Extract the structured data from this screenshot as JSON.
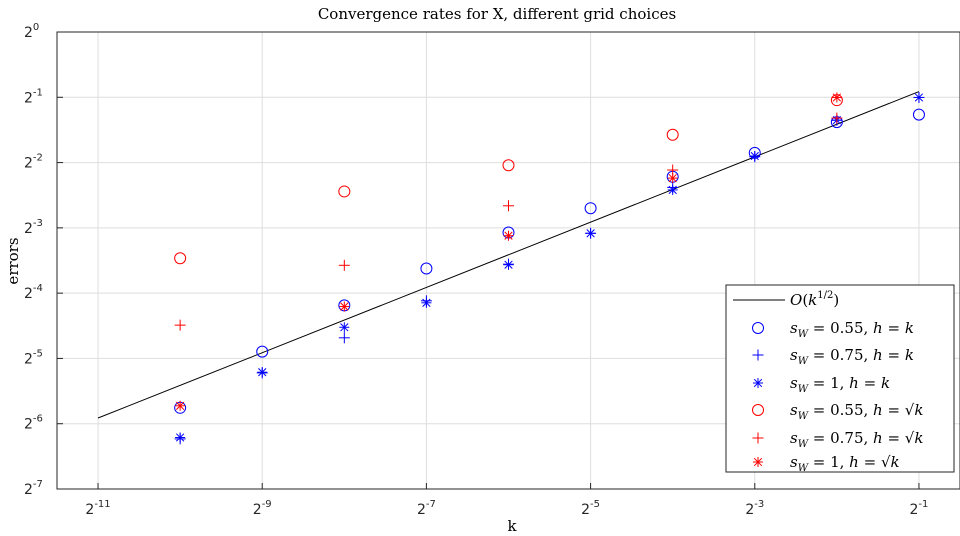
{
  "chart_data": {
    "type": "scatter",
    "title": "Convergence rates for X, different grid choices",
    "xlabel": "k",
    "ylabel": "errors",
    "x_scale": "log2",
    "y_scale": "log2",
    "xlim_exp": [
      -11.5,
      -0.5
    ],
    "ylim_exp": [
      -7,
      0
    ],
    "x_ticks": [
      {
        "base": "2",
        "exp": "-11",
        "e": -11
      },
      {
        "base": "2",
        "exp": "-9",
        "e": -9
      },
      {
        "base": "2",
        "exp": "-7",
        "e": -7
      },
      {
        "base": "2",
        "exp": "-5",
        "e": -5
      },
      {
        "base": "2",
        "exp": "-3",
        "e": -3
      },
      {
        "base": "2",
        "exp": "-1",
        "e": -1
      }
    ],
    "y_ticks": [
      {
        "base": "2",
        "exp": "0",
        "e": 0
      },
      {
        "base": "2",
        "exp": "-1",
        "e": -1
      },
      {
        "base": "2",
        "exp": "-2",
        "e": -2
      },
      {
        "base": "2",
        "exp": "-3",
        "e": -3
      },
      {
        "base": "2",
        "exp": "-4",
        "e": -4
      },
      {
        "base": "2",
        "exp": "-5",
        "e": -5
      },
      {
        "base": "2",
        "exp": "-6",
        "e": -6
      },
      {
        "base": "2",
        "exp": "-7",
        "e": -7
      }
    ],
    "grid": true,
    "legend_position": "bottom-right",
    "reference_line": {
      "name": "O(k^{1/2})",
      "color": "#000000",
      "x": [
        0.00048828,
        0.5
      ],
      "y": [
        0.0166,
        0.5312
      ]
    },
    "series": [
      {
        "name": "s_W = 0.55, h = k",
        "marker": "circle",
        "color": "#0000ff",
        "x": [
          0.0009766,
          0.0019531,
          0.0039063,
          0.0078125,
          0.015625,
          0.03125,
          0.0625,
          0.125,
          0.25,
          0.5
        ],
        "y": [
          0.0185,
          0.0336,
          0.0549,
          0.0812,
          0.119,
          0.154,
          0.215,
          0.277,
          0.384,
          0.416
        ]
      },
      {
        "name": "s_W = 0.75, h = k",
        "marker": "plus",
        "color": "#0000ff",
        "x": [
          0.0009766,
          0.0019531,
          0.0039063,
          0.0078125,
          0.015625,
          0.03125,
          0.0625,
          0.125,
          0.25,
          0.5
        ],
        "y": [
          0.0133,
          0.0268,
          0.0389,
          0.0576,
          0.085,
          0.118,
          0.192,
          0.266,
          0.392,
          0.499
        ]
      },
      {
        "name": "s_W = 1, h = k",
        "marker": "asterisk",
        "color": "#0000ff",
        "x": [
          0.0009766,
          0.0019531,
          0.0039063,
          0.0078125,
          0.015625,
          0.03125,
          0.0625,
          0.125,
          0.25,
          0.5
        ],
        "y": [
          0.0135,
          0.027,
          0.0435,
          0.0564,
          0.0845,
          0.118,
          0.187,
          0.268,
          0.392,
          0.499
        ]
      },
      {
        "name": "s_W = 0.55, h = sqrt(k)",
        "marker": "circle",
        "color": "#ff0000",
        "x": [
          0.0009766,
          0.0039063,
          0.015625,
          0.0625,
          0.25
        ],
        "y": [
          0.0905,
          0.184,
          0.243,
          0.336,
          0.485
        ]
      },
      {
        "name": "s_W = 0.75, h = sqrt(k)",
        "marker": "plus",
        "color": "#ff0000",
        "x": [
          0.0009766,
          0.0039063,
          0.015625,
          0.0625,
          0.25
        ],
        "y": [
          0.0445,
          0.084,
          0.158,
          0.231,
          0.401
        ]
      },
      {
        "name": "s_W = 1, h = sqrt(k)",
        "marker": "asterisk",
        "color": "#ff0000",
        "x": [
          0.0009766,
          0.0039063,
          0.015625,
          0.0625,
          0.25
        ],
        "y": [
          0.0189,
          0.0542,
          0.115,
          0.212,
          0.499
        ]
      }
    ]
  }
}
